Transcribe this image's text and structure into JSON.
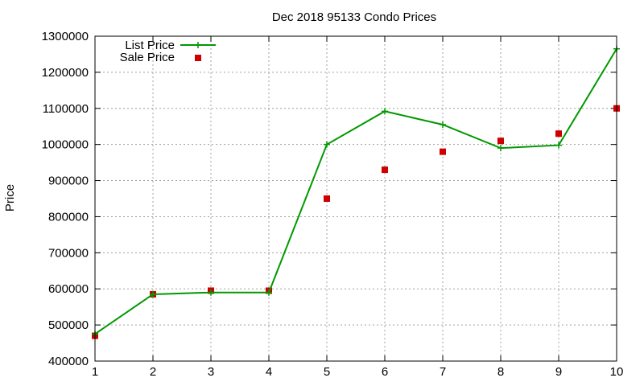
{
  "chart_data": {
    "type": "line",
    "title": "Dec 2018 95133 Condo Prices",
    "xlabel": "",
    "ylabel": "Price",
    "x": [
      1,
      2,
      3,
      4,
      5,
      6,
      7,
      8,
      9,
      10
    ],
    "xlim": [
      1,
      10
    ],
    "ylim": [
      400000,
      1300000
    ],
    "xticks": [
      "1",
      "2",
      "3",
      "4",
      "5",
      "6",
      "7",
      "8",
      "9",
      "10"
    ],
    "yticks": [
      "400000",
      "500000",
      "600000",
      "700000",
      "800000",
      "900000",
      "1000000",
      "1100000",
      "1200000",
      "1300000"
    ],
    "grid": true,
    "legend_position": "top-left",
    "series": [
      {
        "name": "List Price",
        "style": "line-with-plus-markers",
        "color": "#009900",
        "values": [
          475000,
          585000,
          590000,
          590000,
          1000000,
          1092000,
          1055000,
          990000,
          998000,
          1265000
        ]
      },
      {
        "name": "Sale Price",
        "style": "square-markers",
        "color": "#cc0000",
        "values": [
          470000,
          585000,
          595000,
          595000,
          850000,
          930000,
          980000,
          1010000,
          1030000,
          1100000
        ]
      }
    ]
  }
}
